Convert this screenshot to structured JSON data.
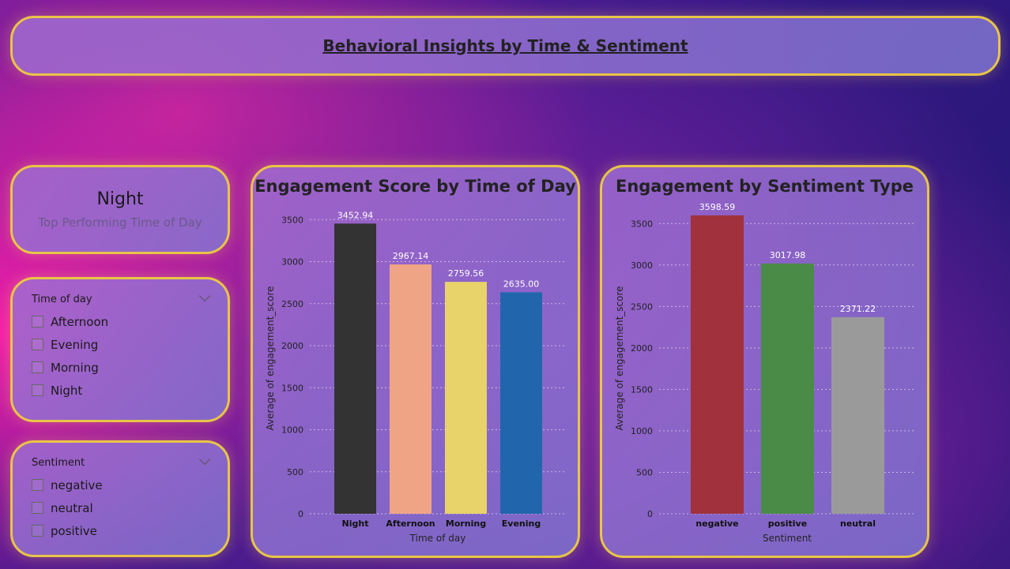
{
  "header": {
    "title": "Behavioral Insights by Time & Sentiment"
  },
  "kpi": {
    "value": "Night",
    "label": "Top Performing Time of Day"
  },
  "slicers": {
    "time_of_day": {
      "title": "Time of day",
      "options": [
        "Afternoon",
        "Evening",
        "Morning",
        "Night"
      ]
    },
    "sentiment": {
      "title": "Sentiment",
      "options": [
        "negative",
        "neutral",
        "positive"
      ]
    }
  },
  "chart_data": [
    {
      "type": "bar",
      "title": "Engagement Score by Time of Day",
      "categories": [
        "Night",
        "Afternoon",
        "Morning",
        "Evening"
      ],
      "values": [
        3452.94,
        2967.14,
        2759.56,
        2635.0
      ],
      "data_labels": [
        "3452.94",
        "2967.14",
        "2759.56",
        "2635.00"
      ],
      "colors": [
        "#333333",
        "#f0a486",
        "#e8d26a",
        "#2166ac"
      ],
      "xlabel": "Time of day",
      "ylabel": "Average of engagement_score",
      "yticks": [
        0,
        500,
        1000,
        1500,
        2000,
        2500,
        3000,
        3500
      ],
      "ylim": [
        0,
        3700
      ],
      "grid": true
    },
    {
      "type": "bar",
      "title": "Engagement by Sentiment Type",
      "categories": [
        "negative",
        "positive",
        "neutral"
      ],
      "values": [
        3598.59,
        3017.98,
        2371.22
      ],
      "data_labels": [
        "3598.59",
        "3017.98",
        "2371.22"
      ],
      "colors": [
        "#a0313d",
        "#4a8c47",
        "#9a9a9a"
      ],
      "xlabel": "Sentiment",
      "ylabel": "Average of engagement_score",
      "yticks": [
        0,
        500,
        1000,
        1500,
        2000,
        2500,
        3000,
        3500
      ],
      "ylim": [
        0,
        3750
      ],
      "grid": true
    }
  ]
}
